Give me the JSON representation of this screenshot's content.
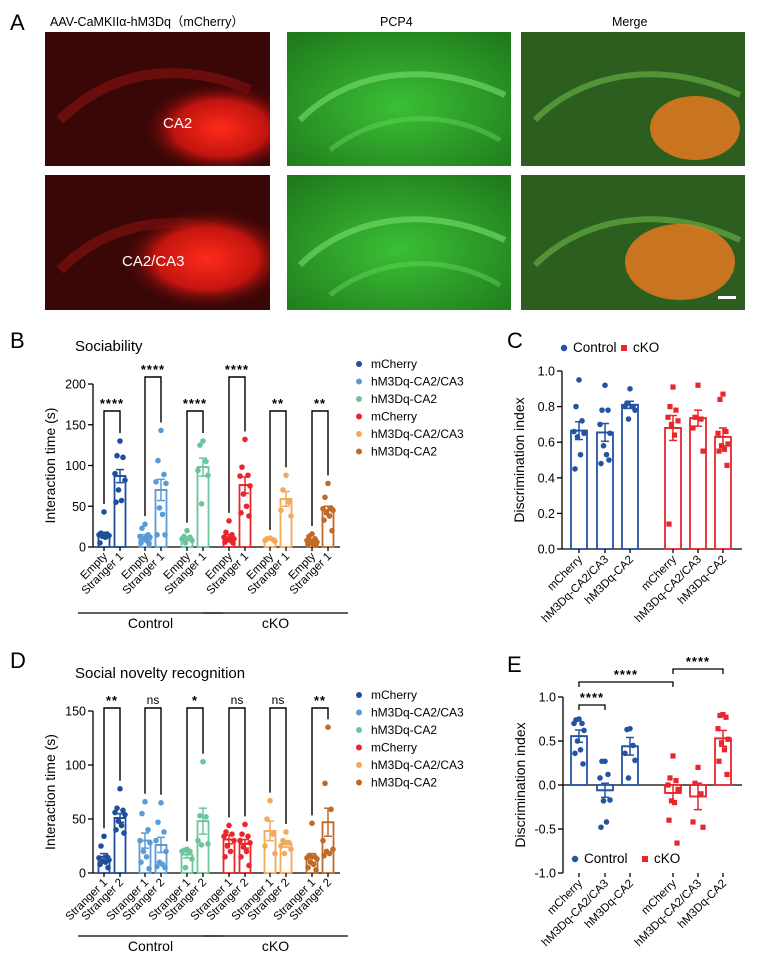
{
  "panel_labels": {
    "A": "A",
    "B": "B",
    "C": "C",
    "D": "D",
    "E": "E"
  },
  "panel_a": {
    "column_titles": [
      "AAV-CaMKIIα-hM3Dq（mCherry）",
      "PCP4",
      "Merge"
    ],
    "row_labels": [
      "CA2",
      "CA2/CA3"
    ],
    "channel_colors": {
      "mCherry": "#e8201f",
      "PCP4": "#2fb52a"
    }
  },
  "colors": {
    "control_mCherry": "#1f4e9c",
    "control_CA2CA3": "#5b9bd5",
    "control_CA2": "#6cc59a",
    "cko_mCherry": "#e8262b",
    "cko_CA2CA3": "#f4a85a",
    "cko_CA2": "#c06a28",
    "control": "#2452a4",
    "cko": "#e8262b"
  },
  "chart_data": [
    {
      "id": "B",
      "type": "bar",
      "title": "Sociability",
      "ylabel": "Interaction time (s)",
      "ylim": [
        0,
        200
      ],
      "yticks": [
        "0",
        "50",
        "100",
        "150",
        "200"
      ],
      "group_labels": [
        "Control",
        "cKO"
      ],
      "legend": [
        "mCherry",
        "hM3Dq-CA2/CA3",
        "hM3Dq-CA2",
        "mCherry",
        "hM3Dq-CA2/CA3",
        "hM3Dq-CA2"
      ],
      "groups": [
        {
          "name": "mCherry",
          "genotype": "Control",
          "color": "#1f4e9c",
          "significance": "****",
          "bars": [
            {
              "label": "Empty",
              "mean": 15,
              "sem": 3,
              "points": [
                43,
                17,
                16,
                15,
                14,
                13,
                12,
                5
              ]
            },
            {
              "label": "Stranger 1",
              "mean": 87,
              "sem": 8,
              "points": [
                130,
                112,
                110,
                90,
                82,
                70,
                57,
                55
              ]
            }
          ]
        },
        {
          "name": "hM3Dq-CA2/CA3",
          "genotype": "Control",
          "color": "#5b9bd5",
          "significance": "****",
          "bars": [
            {
              "label": "Empty",
              "mean": 12,
              "sem": 3,
              "points": [
                28,
                23,
                15,
                13,
                12,
                10,
                8,
                5,
                4
              ]
            },
            {
              "label": "Stranger 1",
              "mean": 70,
              "sem": 13,
              "points": [
                143,
                106,
                89,
                80,
                78,
                48,
                40,
                15,
                15
              ]
            }
          ]
        },
        {
          "name": "hM3Dq-CA2",
          "genotype": "Control",
          "color": "#6cc59a",
          "significance": "****",
          "bars": [
            {
              "label": "Empty",
              "mean": 10,
              "sem": 2,
              "points": [
                20,
                13,
                12,
                10,
                8,
                5
              ]
            },
            {
              "label": "Stranger 1",
              "mean": 98,
              "sem": 11,
              "points": [
                130,
                125,
                105,
                94,
                88,
                53
              ]
            }
          ]
        },
        {
          "name": "mCherry",
          "genotype": "cKO",
          "color": "#e8262b",
          "significance": "****",
          "bars": [
            {
              "label": "Empty",
              "mean": 12,
              "sem": 3,
              "points": [
                32,
                18,
                15,
                12,
                10,
                9,
                8,
                6,
                5
              ]
            },
            {
              "label": "Stranger 1",
              "mean": 76,
              "sem": 10,
              "points": [
                132,
                98,
                88,
                87,
                75,
                65,
                50,
                42,
                38
              ]
            }
          ]
        },
        {
          "name": "hM3Dq-CA2/CA3",
          "genotype": "cKO",
          "color": "#f4a85a",
          "significance": "**",
          "bars": [
            {
              "label": "Empty",
              "mean": 10,
              "sem": 1,
              "points": [
                11,
                10,
                9,
                8,
                7
              ]
            },
            {
              "label": "Stranger 1",
              "mean": 59,
              "sem": 9,
              "points": [
                88,
                70,
                55,
                45,
                38
              ]
            }
          ]
        },
        {
          "name": "hM3Dq-CA2",
          "genotype": "cKO",
          "color": "#c06a28",
          "significance": "**",
          "bars": [
            {
              "label": "Empty",
              "mean": 8,
              "sem": 1.5,
              "points": [
                16,
                13,
                10,
                8,
                6,
                5,
                4,
                3,
                3
              ]
            },
            {
              "label": "Stranger 1",
              "mean": 45,
              "sem": 5,
              "points": [
                78,
                61,
                48,
                47,
                45,
                42,
                38,
                33,
                20
              ]
            }
          ]
        }
      ]
    },
    {
      "id": "C",
      "type": "bar",
      "ylabel": "Discrimination index",
      "ylim": [
        0,
        1.0
      ],
      "yticks": [
        "0.0",
        "0.2",
        "0.4",
        "0.6",
        "0.8",
        "1.0"
      ],
      "legend": [
        {
          "name": "Control",
          "marker": "circle",
          "color": "#2452a4"
        },
        {
          "name": "cKO",
          "marker": "square",
          "color": "#e8262b"
        }
      ],
      "categories": [
        "mCherry",
        "hM3Dq-CA2/CA3",
        "hM3Dq-CA2",
        "mCherry",
        "hM3Dq-CA2/CA3",
        "hM3Dq-CA2"
      ],
      "bars": [
        {
          "genotype": "Control",
          "mean": 0.665,
          "sem": 0.05,
          "points": [
            0.95,
            0.8,
            0.72,
            0.66,
            0.65,
            0.63,
            0.53,
            0.45
          ]
        },
        {
          "genotype": "Control",
          "mean": 0.655,
          "sem": 0.05,
          "points": [
            0.92,
            0.78,
            0.78,
            0.7,
            0.65,
            0.58,
            0.53,
            0.48,
            0.5
          ]
        },
        {
          "genotype": "Control",
          "mean": 0.81,
          "sem": 0.02,
          "points": [
            0.9,
            0.82,
            0.8,
            0.8,
            0.78,
            0.73
          ]
        },
        {
          "genotype": "cKO",
          "mean": 0.68,
          "sem": 0.07,
          "points": [
            0.91,
            0.8,
            0.78,
            0.74,
            0.72,
            0.7,
            0.64,
            0.14
          ]
        },
        {
          "genotype": "cKO",
          "mean": 0.735,
          "sem": 0.045,
          "points": [
            0.92,
            0.74,
            0.73,
            0.68,
            0.55
          ]
        },
        {
          "genotype": "cKO",
          "mean": 0.63,
          "sem": 0.05,
          "points": [
            0.87,
            0.84,
            0.66,
            0.65,
            0.59,
            0.58,
            0.56,
            0.55,
            0.47
          ]
        }
      ]
    },
    {
      "id": "D",
      "type": "bar",
      "title": "Social novelty recognition",
      "ylabel": "Interaction time (s)",
      "ylim": [
        0,
        150
      ],
      "yticks": [
        "0",
        "50",
        "100",
        "150"
      ],
      "group_labels": [
        "Control",
        "cKO"
      ],
      "legend": [
        "mCherry",
        "hM3Dq-CA2/CA3",
        "hM3Dq-CA2",
        "mCherry",
        "hM3Dq-CA2/CA3",
        "hM3Dq-CA2"
      ],
      "groups": [
        {
          "name": "mCherry",
          "genotype": "Control",
          "color": "#1f4e9c",
          "significance": "**",
          "bars": [
            {
              "label": "Stranger 1",
              "mean": 15,
              "sem": 3,
              "points": [
                34,
                25,
                15,
                14,
                12,
                11,
                10,
                8,
                5
              ]
            },
            {
              "label": "Stranger 2",
              "mean": 51,
              "sem": 4,
              "points": [
                78,
                60,
                58,
                56,
                54,
                48,
                44,
                40,
                37
              ]
            }
          ]
        },
        {
          "name": "hM3Dq-CA2/CA3",
          "genotype": "Control",
          "color": "#5b9bd5",
          "significance": "ns",
          "bars": [
            {
              "label": "Stranger 1",
              "mean": 30,
              "sem": 7,
              "points": [
                66,
                55,
                40,
                30,
                28,
                20,
                15,
                10,
                4
              ]
            },
            {
              "label": "Stranger 2",
              "mean": 26,
              "sem": 7,
              "points": [
                65,
                47,
                38,
                30,
                20,
                10,
                8,
                6,
                5
              ]
            }
          ]
        },
        {
          "name": "hM3Dq-CA2",
          "genotype": "Control",
          "color": "#6cc59a",
          "significance": "*",
          "bars": [
            {
              "label": "Stranger 1",
              "mean": 17,
              "sem": 3,
              "points": [
                22,
                21,
                20,
                20,
                13,
                5
              ]
            },
            {
              "label": "Stranger 2",
              "mean": 48,
              "sem": 12,
              "points": [
                103,
                53,
                52,
                30,
                27,
                26
              ]
            }
          ]
        },
        {
          "name": "mCherry",
          "genotype": "cKO",
          "color": "#e8262b",
          "significance": "ns",
          "bars": [
            {
              "label": "Stranger 1",
              "mean": 31,
              "sem": 4,
              "points": [
                44,
                38,
                36,
                34,
                30,
                25,
                20,
                15
              ]
            },
            {
              "label": "Stranger 2",
              "mean": 27,
              "sem": 4,
              "points": [
                45,
                36,
                34,
                30,
                28,
                24,
                20,
                15,
                7
              ]
            }
          ]
        },
        {
          "name": "hM3Dq-CA2/CA3",
          "genotype": "cKO",
          "color": "#f4a85a",
          "significance": "ns",
          "bars": [
            {
              "label": "Stranger 1",
              "mean": 39,
              "sem": 9,
              "points": [
                67,
                50,
                36,
                25,
                18
              ]
            },
            {
              "label": "Stranger 2",
              "mean": 27,
              "sem": 3,
              "points": [
                38,
                30,
                28,
                25,
                22,
                18
              ]
            }
          ]
        },
        {
          "name": "hM3Dq-CA2",
          "genotype": "cKO",
          "color": "#c06a28",
          "significance": "**",
          "bars": [
            {
              "label": "Stranger 1",
              "mean": 14,
              "sem": 4,
              "points": [
                46,
                16,
                15,
                14,
                13,
                10,
                8,
                5,
                3
              ]
            },
            {
              "label": "Stranger 2",
              "mean": 47,
              "sem": 13,
              "points": [
                135,
                83,
                59,
                30,
                22,
                20,
                18,
                16
              ]
            }
          ]
        }
      ]
    },
    {
      "id": "E",
      "type": "bar",
      "ylabel": "Discrimination index",
      "ylim": [
        -1.0,
        1.0
      ],
      "yticks": [
        "-1.0",
        "-0.5",
        "0.0",
        "0.5",
        "1.0"
      ],
      "legend": [
        {
          "name": "Control",
          "marker": "circle",
          "color": "#2452a4"
        },
        {
          "name": "cKO",
          "marker": "square",
          "color": "#e8262b"
        }
      ],
      "categories": [
        "mCherry",
        "hM3Dq-CA2/CA3",
        "hM3Dq-CA2",
        "mCherry",
        "hM3Dq-CA2/CA3",
        "hM3Dq-CA2"
      ],
      "bars": [
        {
          "genotype": "Control",
          "mean": 0.555,
          "sem": 0.07,
          "points": [
            0.75,
            0.74,
            0.7,
            0.7,
            0.62,
            0.5,
            0.4,
            0.36,
            0.24
          ]
        },
        {
          "genotype": "Control",
          "mean": -0.06,
          "sem": 0.08,
          "points": [
            0.27,
            0.27,
            0.12,
            0.08,
            -0.17,
            -0.18,
            -0.42,
            -0.48
          ]
        },
        {
          "genotype": "Control",
          "mean": 0.44,
          "sem": 0.1,
          "points": [
            0.64,
            0.63,
            0.45,
            0.36,
            0.28,
            0.08
          ]
        },
        {
          "genotype": "cKO",
          "mean": -0.09,
          "sem": 0.09,
          "points": [
            0.33,
            0.08,
            0.05,
            0.0,
            -0.05,
            -0.18,
            -0.2,
            -0.4,
            -0.66
          ]
        },
        {
          "genotype": "cKO",
          "mean": -0.13,
          "sem": 0.15,
          "points": [
            0.2,
            0.02,
            -0.1,
            -0.42,
            -0.48
          ]
        },
        {
          "genotype": "cKO",
          "mean": 0.53,
          "sem": 0.09,
          "points": [
            0.8,
            0.79,
            0.77,
            0.64,
            0.52,
            0.48,
            0.4,
            0.27,
            0.12
          ]
        }
      ],
      "comparisons": [
        {
          "from": 0,
          "to": 1,
          "label": "****"
        },
        {
          "from": 0,
          "to": 3,
          "label": "****"
        },
        {
          "from": 3,
          "to": 5,
          "label": "****"
        }
      ]
    }
  ]
}
